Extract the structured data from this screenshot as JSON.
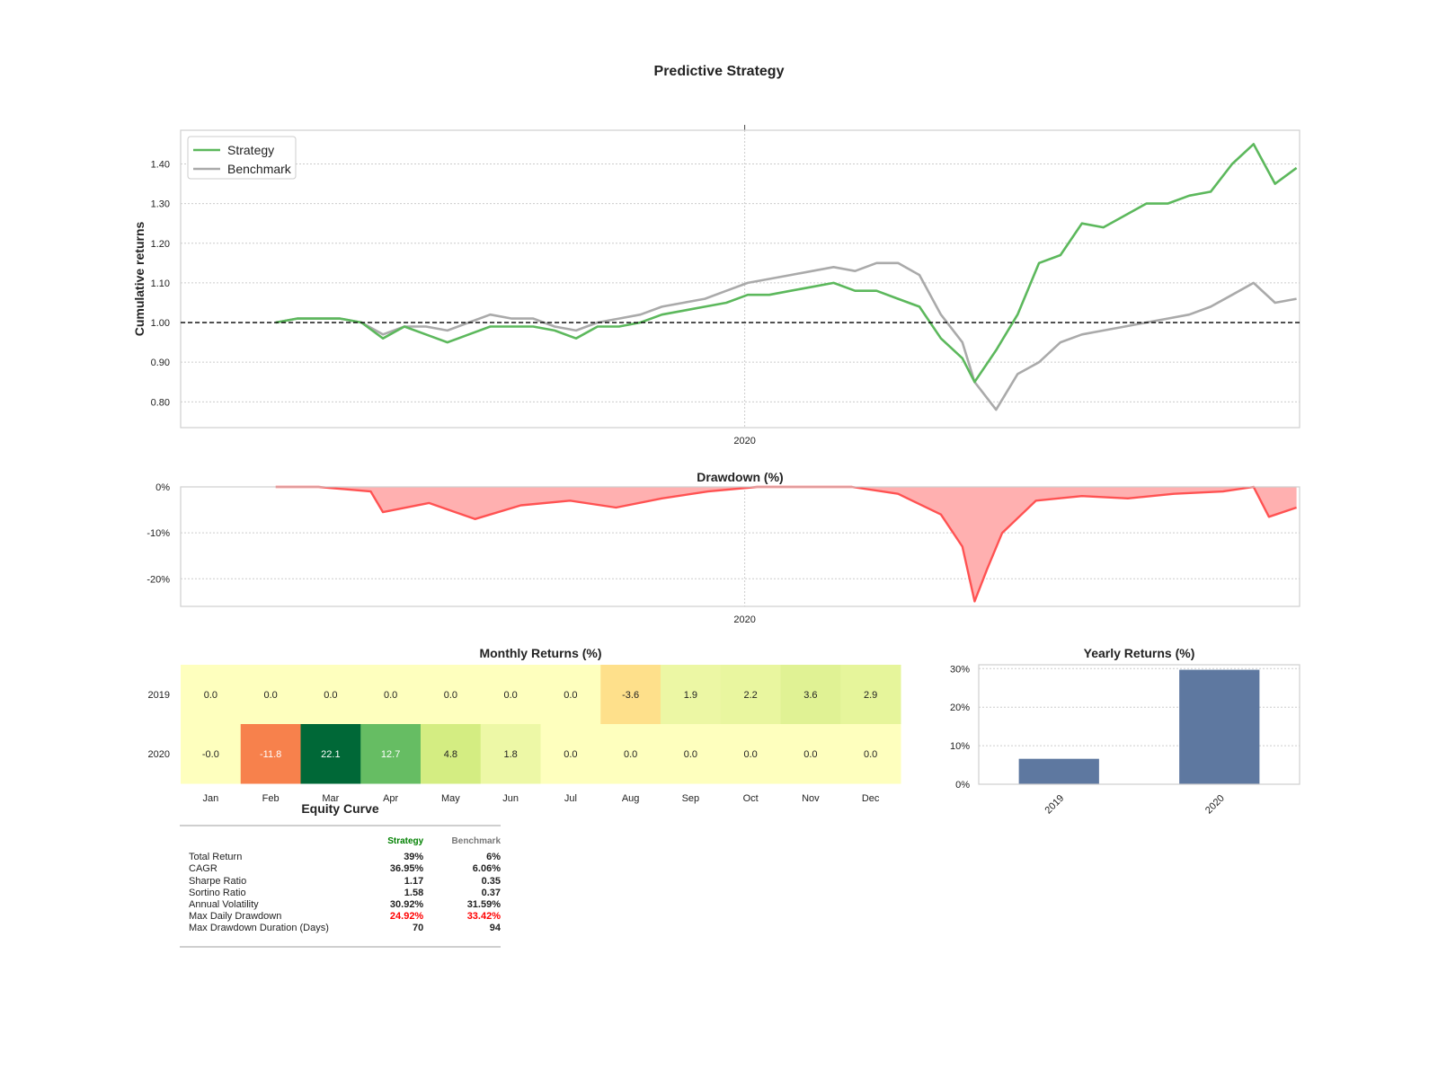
{
  "figure_title": "Predictive Strategy",
  "colors": {
    "strategy": "#5cb85c",
    "benchmark": "#aaaaaa",
    "drawdown_line": "#ff5252",
    "drawdown_fill": "#ffb0b0",
    "bar": "#5e78a0",
    "good": "#008000",
    "bad": "#ff0000"
  },
  "chart_data": [
    {
      "type": "line",
      "ylabel": "Cumulative returns",
      "x_tick_labels": [
        "2020"
      ],
      "y_ticks": [
        "0.80",
        "0.90",
        "1.00",
        "1.10",
        "1.20",
        "1.30",
        "1.40"
      ],
      "ylim": [
        0.735,
        1.485
      ],
      "x_range": [
        "2019-07-01",
        "2020-06-30"
      ],
      "x_tick_dates": [
        "2020-01-01"
      ],
      "reference_line": 1.0,
      "legend": {
        "position": "top-left",
        "entries": [
          "Strategy",
          "Benchmark"
        ]
      },
      "x": [
        "2019-08-01",
        "2019-08-08",
        "2019-08-15",
        "2019-08-22",
        "2019-08-29",
        "2019-09-05",
        "2019-09-12",
        "2019-09-19",
        "2019-09-26",
        "2019-10-03",
        "2019-10-10",
        "2019-10-17",
        "2019-10-24",
        "2019-10-31",
        "2019-11-07",
        "2019-11-14",
        "2019-11-21",
        "2019-11-28",
        "2019-12-05",
        "2019-12-12",
        "2019-12-19",
        "2019-12-26",
        "2020-01-02",
        "2020-01-09",
        "2020-01-16",
        "2020-01-23",
        "2020-01-30",
        "2020-02-06",
        "2020-02-13",
        "2020-02-20",
        "2020-02-27",
        "2020-03-05",
        "2020-03-12",
        "2020-03-16",
        "2020-03-23",
        "2020-03-30",
        "2020-04-06",
        "2020-04-13",
        "2020-04-20",
        "2020-04-27",
        "2020-05-04",
        "2020-05-11",
        "2020-05-18",
        "2020-05-25",
        "2020-06-01",
        "2020-06-08",
        "2020-06-15",
        "2020-06-22",
        "2020-06-29"
      ],
      "series": [
        {
          "name": "Strategy",
          "values": [
            1.0,
            1.01,
            1.01,
            1.01,
            1.0,
            0.96,
            0.99,
            0.97,
            0.95,
            0.97,
            0.99,
            0.99,
            0.99,
            0.98,
            0.96,
            0.99,
            0.99,
            1.0,
            1.02,
            1.03,
            1.04,
            1.05,
            1.07,
            1.07,
            1.08,
            1.09,
            1.1,
            1.08,
            1.08,
            1.06,
            1.04,
            0.96,
            0.91,
            0.85,
            0.93,
            1.02,
            1.15,
            1.17,
            1.25,
            1.24,
            1.27,
            1.3,
            1.3,
            1.32,
            1.33,
            1.4,
            1.45,
            1.35,
            1.39
          ]
        },
        {
          "name": "Benchmark",
          "values": [
            1.0,
            1.01,
            1.01,
            1.01,
            1.0,
            0.97,
            0.99,
            0.99,
            0.98,
            1.0,
            1.02,
            1.01,
            1.01,
            0.99,
            0.98,
            1.0,
            1.01,
            1.02,
            1.04,
            1.05,
            1.06,
            1.08,
            1.1,
            1.11,
            1.12,
            1.13,
            1.14,
            1.13,
            1.15,
            1.15,
            1.12,
            1.02,
            0.95,
            0.85,
            0.78,
            0.87,
            0.9,
            0.95,
            0.97,
            0.98,
            0.99,
            1.0,
            1.01,
            1.02,
            1.04,
            1.07,
            1.1,
            1.05,
            1.06
          ]
        }
      ]
    },
    {
      "type": "area",
      "title": "Drawdown (%)",
      "x_tick_labels": [
        "2020"
      ],
      "y_ticks": [
        "0%",
        "-10%",
        "-20%"
      ],
      "ylim": [
        -26,
        0
      ],
      "x": [
        "2019-08-01",
        "2019-08-15",
        "2019-09-01",
        "2019-09-05",
        "2019-09-20",
        "2019-10-05",
        "2019-10-20",
        "2019-11-05",
        "2019-11-20",
        "2019-12-05",
        "2019-12-20",
        "2020-01-05",
        "2020-01-20",
        "2020-02-05",
        "2020-02-20",
        "2020-03-05",
        "2020-03-12",
        "2020-03-16",
        "2020-03-20",
        "2020-03-25",
        "2020-04-05",
        "2020-04-20",
        "2020-05-05",
        "2020-05-20",
        "2020-06-05",
        "2020-06-15",
        "2020-06-20",
        "2020-06-29"
      ],
      "values": [
        0,
        0,
        -1,
        -5.5,
        -3.5,
        -7,
        -4,
        -3,
        -4.5,
        -2.5,
        -1,
        0,
        0,
        0,
        -1.5,
        -6,
        -13,
        -24.9,
        -18,
        -10,
        -3,
        -2,
        -2.5,
        -1.5,
        -1,
        0,
        -6.5,
        -4.5
      ]
    },
    {
      "type": "heatmap",
      "title": "Monthly Returns (%)",
      "rows": [
        "2019",
        "2020"
      ],
      "columns": [
        "Jan",
        "Feb",
        "Mar",
        "Apr",
        "May",
        "Jun",
        "Jul",
        "Aug",
        "Sep",
        "Oct",
        "Nov",
        "Dec"
      ],
      "values": [
        [
          "0.0",
          "0.0",
          "0.0",
          "0.0",
          "0.0",
          "0.0",
          "0.0",
          "-3.6",
          "1.9",
          "2.2",
          "3.6",
          "2.9"
        ],
        [
          "-0.0",
          "-11.8",
          "22.1",
          "12.7",
          "4.8",
          "1.8",
          "0.0",
          "0.0",
          "0.0",
          "0.0",
          "0.0",
          "0.0"
        ]
      ],
      "cell_colors": [
        [
          "#feffbe",
          "#feffbe",
          "#feffbe",
          "#feffbe",
          "#feffbe",
          "#feffbe",
          "#feffbe",
          "#fee08b",
          "#ecf7a4",
          "#e9f69f",
          "#e0f294",
          "#e6f59b"
        ],
        [
          "#feffbe",
          "#f7814c",
          "#006837",
          "#66bd63",
          "#d4ed82",
          "#edf8a6",
          "#feffbe",
          "#feffbe",
          "#feffbe",
          "#feffbe",
          "#feffbe",
          "#feffbe"
        ]
      ]
    },
    {
      "type": "bar",
      "title": "Yearly Returns (%)",
      "categories": [
        "2019",
        "2020"
      ],
      "values": [
        6.6,
        29.7
      ],
      "y_ticks": [
        "0%",
        "10%",
        "20%",
        "30%"
      ],
      "ylim": [
        0,
        31
      ]
    }
  ],
  "metrics": {
    "title": "Equity Curve",
    "headers": [
      "Strategy",
      "Benchmark"
    ],
    "rows": [
      {
        "label": "Total Return",
        "strategy": "39%",
        "benchmark": "6%"
      },
      {
        "label": "CAGR",
        "strategy": "36.95%",
        "benchmark": "6.06%"
      },
      {
        "label": "Sharpe Ratio",
        "strategy": "1.17",
        "benchmark": "0.35"
      },
      {
        "label": "Sortino Ratio",
        "strategy": "1.58",
        "benchmark": "0.37"
      },
      {
        "label": "Annual Volatility",
        "strategy": "30.92%",
        "benchmark": "31.59%"
      },
      {
        "label": "Max Daily Drawdown",
        "strategy": "24.92%",
        "benchmark": "33.42%"
      },
      {
        "label": "Max Drawdown Duration (Days)",
        "strategy": "70",
        "benchmark": "94"
      }
    ]
  }
}
